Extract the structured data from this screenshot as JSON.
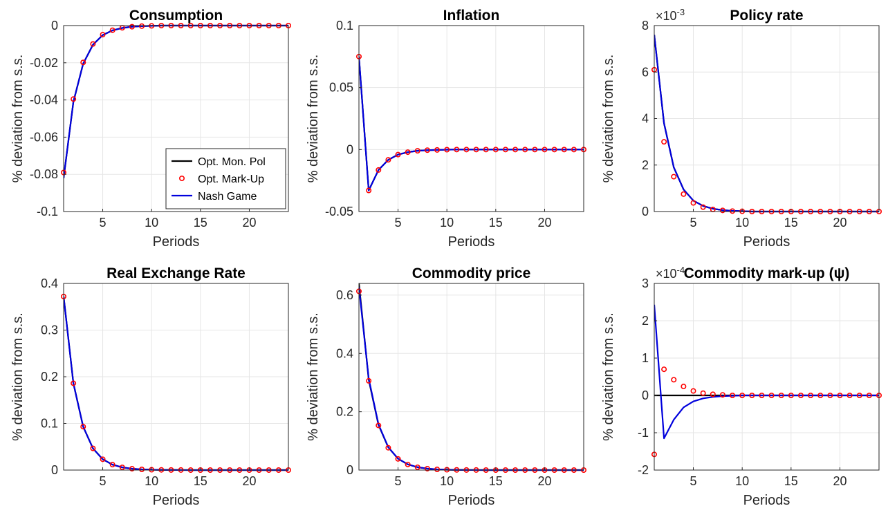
{
  "chart_data": [
    {
      "type": "line",
      "title": "Consumption",
      "xlabel": "Periods",
      "ylabel": "% deviation from s.s.",
      "xlim": [
        1,
        24
      ],
      "ylim": [
        -0.1,
        0
      ],
      "xticks": [
        5,
        10,
        15,
        20
      ],
      "xtick_labels": [
        "5",
        "10",
        "15",
        "20"
      ],
      "yticks": [
        -0.1,
        -0.08,
        -0.06,
        -0.04,
        -0.02,
        0
      ],
      "ytick_labels": [
        "-0.1",
        "-0.08",
        "-0.06",
        "-0.04",
        "-0.02",
        "0"
      ],
      "exponent_label": "",
      "grid": true,
      "legend": {
        "position": "bottom-right",
        "entries": [
          "Opt. Mon. Pol",
          "Opt. Mark-Up",
          "Nash Game"
        ]
      },
      "x": [
        1,
        2,
        3,
        4,
        5,
        6,
        7,
        8,
        9,
        10,
        11,
        12,
        13,
        14,
        15,
        16,
        17,
        18,
        19,
        20,
        21,
        22,
        23,
        24
      ],
      "series": [
        {
          "name": "Opt. Mon. Pol",
          "style": "line",
          "color": "#000000",
          "values": [
            -0.082,
            -0.041,
            -0.0205,
            -0.0103,
            -0.0051,
            -0.0026,
            -0.0013,
            -0.0006,
            -0.0003,
            -0.00015,
            0,
            0,
            0,
            0,
            0,
            0,
            0,
            0,
            0,
            0,
            0,
            0,
            0,
            0
          ]
        },
        {
          "name": "Opt. Mark-Up",
          "style": "markers",
          "color": "#ff0000",
          "values": [
            -0.079,
            -0.0395,
            -0.0198,
            -0.0099,
            -0.0049,
            -0.0025,
            -0.0012,
            -0.0006,
            -0.0003,
            -0.00015,
            0,
            0,
            0,
            0,
            0,
            0,
            0,
            0,
            0,
            0,
            0,
            0,
            0,
            0
          ]
        },
        {
          "name": "Nash Game",
          "style": "line",
          "color": "#0000dd",
          "values": [
            -0.082,
            -0.041,
            -0.0205,
            -0.0103,
            -0.0051,
            -0.0026,
            -0.0013,
            -0.0006,
            -0.0003,
            -0.00015,
            0,
            0,
            0,
            0,
            0,
            0,
            0,
            0,
            0,
            0,
            0,
            0,
            0,
            0
          ]
        }
      ]
    },
    {
      "type": "line",
      "title": "Inflation",
      "xlabel": "Periods",
      "ylabel": "% deviation from s.s.",
      "xlim": [
        1,
        24
      ],
      "ylim": [
        -0.05,
        0.1
      ],
      "xticks": [
        5,
        10,
        15,
        20
      ],
      "xtick_labels": [
        "5",
        "10",
        "15",
        "20"
      ],
      "yticks": [
        -0.05,
        0,
        0.05,
        0.1
      ],
      "ytick_labels": [
        "-0.05",
        "0",
        "0.05",
        "0.1"
      ],
      "exponent_label": "",
      "grid": true,
      "x": [
        1,
        2,
        3,
        4,
        5,
        6,
        7,
        8,
        9,
        10,
        11,
        12,
        13,
        14,
        15,
        16,
        17,
        18,
        19,
        20,
        21,
        22,
        23,
        24
      ],
      "series": [
        {
          "name": "Opt. Mon. Pol",
          "style": "line",
          "color": "#000000",
          "values": [
            0.075,
            -0.033,
            -0.0165,
            -0.0083,
            -0.0041,
            -0.0021,
            -0.001,
            -0.0005,
            -0.0003,
            -0.0001,
            0,
            0,
            0,
            0,
            0,
            0,
            0,
            0,
            0,
            0,
            0,
            0,
            0,
            0
          ]
        },
        {
          "name": "Opt. Mark-Up",
          "style": "markers",
          "color": "#ff0000",
          "values": [
            0.075,
            -0.033,
            -0.0165,
            -0.0083,
            -0.0041,
            -0.0021,
            -0.001,
            -0.0005,
            -0.0003,
            -0.0001,
            0,
            0,
            0,
            0,
            0,
            0,
            0,
            0,
            0,
            0,
            0,
            0,
            0,
            0
          ]
        },
        {
          "name": "Nash Game",
          "style": "line",
          "color": "#0000dd",
          "values": [
            0.075,
            -0.033,
            -0.0165,
            -0.0083,
            -0.0041,
            -0.0021,
            -0.001,
            -0.0005,
            -0.0003,
            -0.0001,
            0,
            0,
            0,
            0,
            0,
            0,
            0,
            0,
            0,
            0,
            0,
            0,
            0,
            0
          ]
        }
      ]
    },
    {
      "type": "line",
      "title": "Policy rate",
      "xlabel": "Periods",
      "ylabel": "% deviation from s.s.",
      "xlim": [
        1,
        24
      ],
      "ylim": [
        0,
        0.008
      ],
      "xticks": [
        5,
        10,
        15,
        20
      ],
      "xtick_labels": [
        "5",
        "10",
        "15",
        "20"
      ],
      "yticks": [
        0,
        0.002,
        0.004,
        0.006,
        0.008
      ],
      "ytick_labels": [
        "0",
        "2",
        "4",
        "6",
        "8"
      ],
      "exponent_label": "×10^-3",
      "exponent_base": "×10",
      "exponent_power": "-3",
      "grid": true,
      "x": [
        1,
        2,
        3,
        4,
        5,
        6,
        7,
        8,
        9,
        10,
        11,
        12,
        13,
        14,
        15,
        16,
        17,
        18,
        19,
        20,
        21,
        22,
        23,
        24
      ],
      "series": [
        {
          "name": "Opt. Mon. Pol",
          "style": "line",
          "color": "#000000",
          "values": [
            0.0076,
            0.0038,
            0.0019,
            0.00095,
            0.00047,
            0.00024,
            0.00012,
            6e-05,
            3e-05,
            1.5e-05,
            0,
            0,
            0,
            0,
            0,
            0,
            0,
            0,
            0,
            0,
            0,
            0,
            0,
            0
          ]
        },
        {
          "name": "Opt. Mark-Up",
          "style": "markers",
          "color": "#ff0000",
          "values": [
            0.0061,
            0.003,
            0.0015,
            0.00075,
            0.00037,
            0.00019,
            9e-05,
            5e-05,
            2e-05,
            1e-05,
            0,
            0,
            0,
            0,
            0,
            0,
            0,
            0,
            0,
            0,
            0,
            0,
            0,
            0
          ]
        },
        {
          "name": "Nash Game",
          "style": "line",
          "color": "#0000dd",
          "values": [
            0.0076,
            0.0038,
            0.0019,
            0.00095,
            0.00047,
            0.00024,
            0.00012,
            6e-05,
            3e-05,
            1.5e-05,
            0,
            0,
            0,
            0,
            0,
            0,
            0,
            0,
            0,
            0,
            0,
            0,
            0,
            0
          ]
        }
      ]
    },
    {
      "type": "line",
      "title": "Real Exchange Rate",
      "xlabel": "Periods",
      "ylabel": "% deviation from s.s.",
      "xlim": [
        1,
        24
      ],
      "ylim": [
        0,
        0.4
      ],
      "xticks": [
        5,
        10,
        15,
        20
      ],
      "xtick_labels": [
        "5",
        "10",
        "15",
        "20"
      ],
      "yticks": [
        0,
        0.1,
        0.2,
        0.3,
        0.4
      ],
      "ytick_labels": [
        "0",
        "0.1",
        "0.2",
        "0.3",
        "0.4"
      ],
      "exponent_label": "",
      "grid": true,
      "x": [
        1,
        2,
        3,
        4,
        5,
        6,
        7,
        8,
        9,
        10,
        11,
        12,
        13,
        14,
        15,
        16,
        17,
        18,
        19,
        20,
        21,
        22,
        23,
        24
      ],
      "series": [
        {
          "name": "Opt. Mon. Pol",
          "style": "line",
          "color": "#000000",
          "values": [
            0.372,
            0.186,
            0.093,
            0.0465,
            0.0232,
            0.0116,
            0.0058,
            0.0029,
            0.0015,
            0.0007,
            0.0004,
            0.0002,
            0.0001,
            0,
            0,
            0,
            0,
            0,
            0,
            0,
            0,
            0,
            0,
            0
          ]
        },
        {
          "name": "Opt. Mark-Up",
          "style": "markers",
          "color": "#ff0000",
          "values": [
            0.372,
            0.186,
            0.093,
            0.0465,
            0.0232,
            0.0116,
            0.0058,
            0.0029,
            0.0015,
            0.0007,
            0.0004,
            0.0002,
            0.0001,
            0,
            0,
            0,
            0,
            0,
            0,
            0,
            0,
            0,
            0,
            0
          ]
        },
        {
          "name": "Nash Game",
          "style": "line",
          "color": "#0000dd",
          "values": [
            0.372,
            0.186,
            0.093,
            0.0465,
            0.0232,
            0.0116,
            0.0058,
            0.0029,
            0.0015,
            0.0007,
            0.0004,
            0.0002,
            0.0001,
            0,
            0,
            0,
            0,
            0,
            0,
            0,
            0,
            0,
            0,
            0
          ]
        }
      ]
    },
    {
      "type": "line",
      "title": "Commodity price",
      "xlabel": "Periods",
      "ylabel": "% deviation from s.s.",
      "xlim": [
        1,
        24
      ],
      "ylim": [
        0,
        0.64
      ],
      "xticks": [
        5,
        10,
        15,
        20
      ],
      "xtick_labels": [
        "5",
        "10",
        "15",
        "20"
      ],
      "yticks": [
        0,
        0.2,
        0.4,
        0.6
      ],
      "ytick_labels": [
        "0",
        "0.2",
        "0.4",
        "0.6"
      ],
      "exponent_label": "",
      "grid": true,
      "x": [
        1,
        2,
        3,
        4,
        5,
        6,
        7,
        8,
        9,
        10,
        11,
        12,
        13,
        14,
        15,
        16,
        17,
        18,
        19,
        20,
        21,
        22,
        23,
        24
      ],
      "series": [
        {
          "name": "Opt. Mon. Pol",
          "style": "line",
          "color": "#000000",
          "values": [
            0.64,
            0.31,
            0.155,
            0.078,
            0.039,
            0.0195,
            0.0098,
            0.0049,
            0.0024,
            0.0012,
            0.0006,
            0.0003,
            0.0002,
            0,
            0,
            0,
            0,
            0,
            0,
            0,
            0,
            0,
            0,
            0
          ]
        },
        {
          "name": "Opt. Mark-Up",
          "style": "markers",
          "color": "#ff0000",
          "values": [
            0.613,
            0.306,
            0.153,
            0.0765,
            0.0383,
            0.0191,
            0.0096,
            0.0048,
            0.0024,
            0.0012,
            0.0006,
            0.0003,
            0.0002,
            0,
            0,
            0,
            0,
            0,
            0,
            0,
            0,
            0,
            0,
            0
          ]
        },
        {
          "name": "Nash Game",
          "style": "line",
          "color": "#0000dd",
          "values": [
            0.628,
            0.314,
            0.157,
            0.0785,
            0.0393,
            0.0196,
            0.0098,
            0.0049,
            0.0025,
            0.0012,
            0.0006,
            0.0003,
            0.0002,
            0,
            0,
            0,
            0,
            0,
            0,
            0,
            0,
            0,
            0,
            0
          ]
        }
      ]
    },
    {
      "type": "line",
      "title": "Commodity mark-up (ψ)",
      "xlabel": "Periods",
      "ylabel": "% deviation from s.s.",
      "xlim": [
        1,
        24
      ],
      "ylim": [
        -0.0002,
        0.0003
      ],
      "xticks": [
        5,
        10,
        15,
        20
      ],
      "xtick_labels": [
        "5",
        "10",
        "15",
        "20"
      ],
      "yticks": [
        -0.0002,
        -0.0001,
        0,
        0.0001,
        0.0002,
        0.0003
      ],
      "ytick_labels": [
        "-2",
        "-1",
        "0",
        "1",
        "2",
        "3"
      ],
      "exponent_label": "×10^-4",
      "exponent_base": "×10",
      "exponent_power": "-4",
      "grid": true,
      "x": [
        1,
        2,
        3,
        4,
        5,
        6,
        7,
        8,
        9,
        10,
        11,
        12,
        13,
        14,
        15,
        16,
        17,
        18,
        19,
        20,
        21,
        22,
        23,
        24
      ],
      "series": [
        {
          "name": "Opt. Mon. Pol",
          "style": "line",
          "color": "#000000",
          "values": [
            0,
            0,
            0,
            0,
            0,
            0,
            0,
            0,
            0,
            0,
            0,
            0,
            0,
            0,
            0,
            0,
            0,
            0,
            0,
            0,
            0,
            0,
            0,
            0
          ]
        },
        {
          "name": "Opt. Mark-Up",
          "style": "markers",
          "color": "#ff0000",
          "values": [
            -0.000158,
            7e-05,
            4.2e-05,
            2.4e-05,
            1.2e-05,
            6e-06,
            3e-06,
            1.5e-06,
            0,
            0,
            0,
            0,
            0,
            0,
            0,
            0,
            0,
            0,
            0,
            0,
            0,
            0,
            0,
            0
          ]
        },
        {
          "name": "Nash Game",
          "style": "line",
          "color": "#0000dd",
          "values": [
            0.000243,
            -0.000115,
            -6.5e-05,
            -3.2e-05,
            -1.6e-05,
            -8e-06,
            -4e-06,
            -2e-06,
            -1e-06,
            0,
            0,
            0,
            0,
            0,
            0,
            0,
            0,
            0,
            0,
            0,
            0,
            0,
            0,
            0
          ]
        }
      ]
    }
  ]
}
